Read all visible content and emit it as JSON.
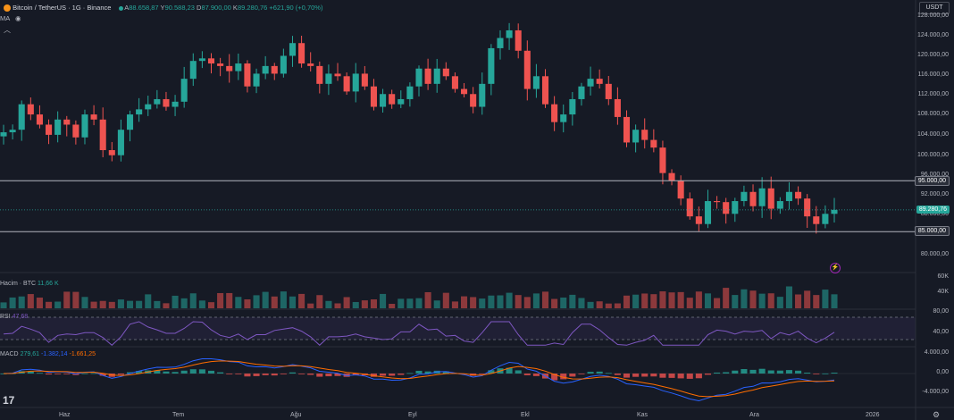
{
  "header": {
    "pair_title": "Bitcoin / TetherUS · 1G · Binance",
    "ohlc": {
      "o_label": "A",
      "o": "88.658,87",
      "h_label": "Y",
      "h": "90.588,23",
      "l_label": "D",
      "l": "87.900,00",
      "c_label": "K",
      "c": "89.280,76",
      "change": "+621,90 (+0,70%)"
    },
    "ma_label": "MA"
  },
  "currency_button": "USDT",
  "price_axis": {
    "ticks": [
      "128.000,00",
      "124.000,00",
      "120.000,00",
      "116.000,00",
      "112.000,00",
      "108.000,00",
      "104.000,00",
      "100.000,00",
      "96.000,00",
      "92.000,00",
      "88.000,00",
      "84.000,00",
      "80.000,00"
    ],
    "badges": {
      "upper_line": "95.000,00",
      "current": "89.280,76",
      "lower_line": "85.000,00"
    }
  },
  "volume_pane": {
    "label": "Hacim · BTC",
    "value": "11,66 K",
    "axis": [
      "60K",
      "40K"
    ]
  },
  "rsi_pane": {
    "label": "RSI",
    "value": "47,68",
    "axis": [
      "80,00",
      "40,00"
    ]
  },
  "macd_pane": {
    "label": "MACD",
    "values": [
      "279,61",
      "-1.382,14",
      "-1.661,25"
    ],
    "axis": [
      "4.000,00",
      "0,00",
      "-4.000,00"
    ]
  },
  "time_axis": [
    "Haz",
    "Tem",
    "Ağu",
    "Eyl",
    "Ekl",
    "Kas",
    "Ara",
    "2026"
  ],
  "logo": "17",
  "colors": {
    "up": "#26a69a",
    "down": "#ef5350",
    "bg": "#161a25",
    "rsi": "#7e57c2",
    "macd": "#2962ff",
    "signal": "#ff6d00"
  },
  "chart_data": {
    "type": "candlestick",
    "title": "Bitcoin / TetherUS · 1G · Binance",
    "x_range": [
      "Haz",
      "2026"
    ],
    "ylim": [
      78000,
      128000
    ],
    "horizontal_lines": [
      95000,
      85000
    ],
    "close_path": [
      104500,
      105000,
      110000,
      108000,
      106000,
      104000,
      107000,
      106000,
      103500,
      108000,
      107000,
      101000,
      100000,
      105000,
      108000,
      109000,
      110000,
      111000,
      109500,
      110500,
      115000,
      118500,
      119000,
      118000,
      117500,
      116500,
      118000,
      113500,
      116000,
      117500,
      116000,
      119500,
      122000,
      118000,
      117500,
      114000,
      116000,
      115500,
      112500,
      116000,
      113500,
      109500,
      112000,
      110000,
      111000,
      113500,
      117000,
      114000,
      117000,
      115500,
      113000,
      112000,
      109500,
      114000,
      121000,
      123000,
      124500,
      120500,
      113000,
      115500,
      110000,
      106500,
      108000,
      111000,
      113500,
      115000,
      114000,
      111000,
      107500,
      102500,
      105000,
      103000,
      101500,
      96500,
      95000,
      91500,
      88000,
      86500,
      91000,
      90800,
      88500,
      91000,
      92800,
      90000,
      93500,
      89500,
      91000,
      92800,
      91500,
      88000,
      86500,
      88500,
      89280
    ],
    "volume_range_k": [
      0,
      70
    ],
    "rsi_range": [
      30,
      80
    ],
    "macd_range": [
      -4000,
      4000
    ]
  }
}
